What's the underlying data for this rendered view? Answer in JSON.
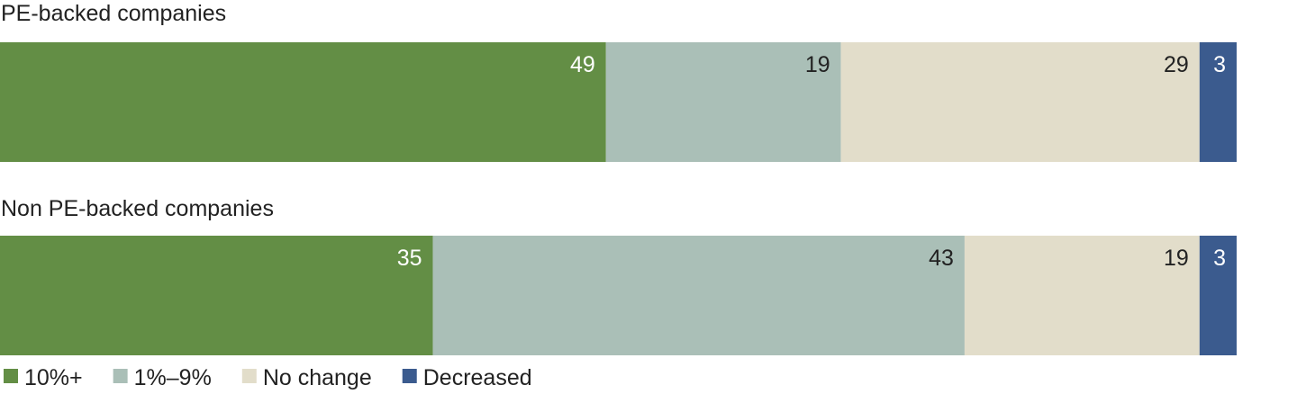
{
  "chart_data": {
    "type": "bar",
    "orientation": "horizontal-stacked",
    "unit": "percent",
    "categories": [
      "PE-backed companies",
      "Non PE-backed companies"
    ],
    "series": [
      {
        "name": "10%+",
        "color": "#638e45",
        "label_color": "#ffffff",
        "values": [
          49,
          35
        ]
      },
      {
        "name": "1%–9%",
        "color": "#aabfb7",
        "label_color": "#222222",
        "values": [
          19,
          43
        ]
      },
      {
        "name": "No change",
        "color": "#e2ddca",
        "label_color": "#222222",
        "values": [
          29,
          19
        ]
      },
      {
        "name": "Decreased",
        "color": "#3b5b8e",
        "label_color": "#ffffff",
        "values": [
          3,
          3
        ]
      }
    ],
    "xlim": [
      0,
      100
    ],
    "grid": false,
    "legend_position": "bottom-left"
  }
}
